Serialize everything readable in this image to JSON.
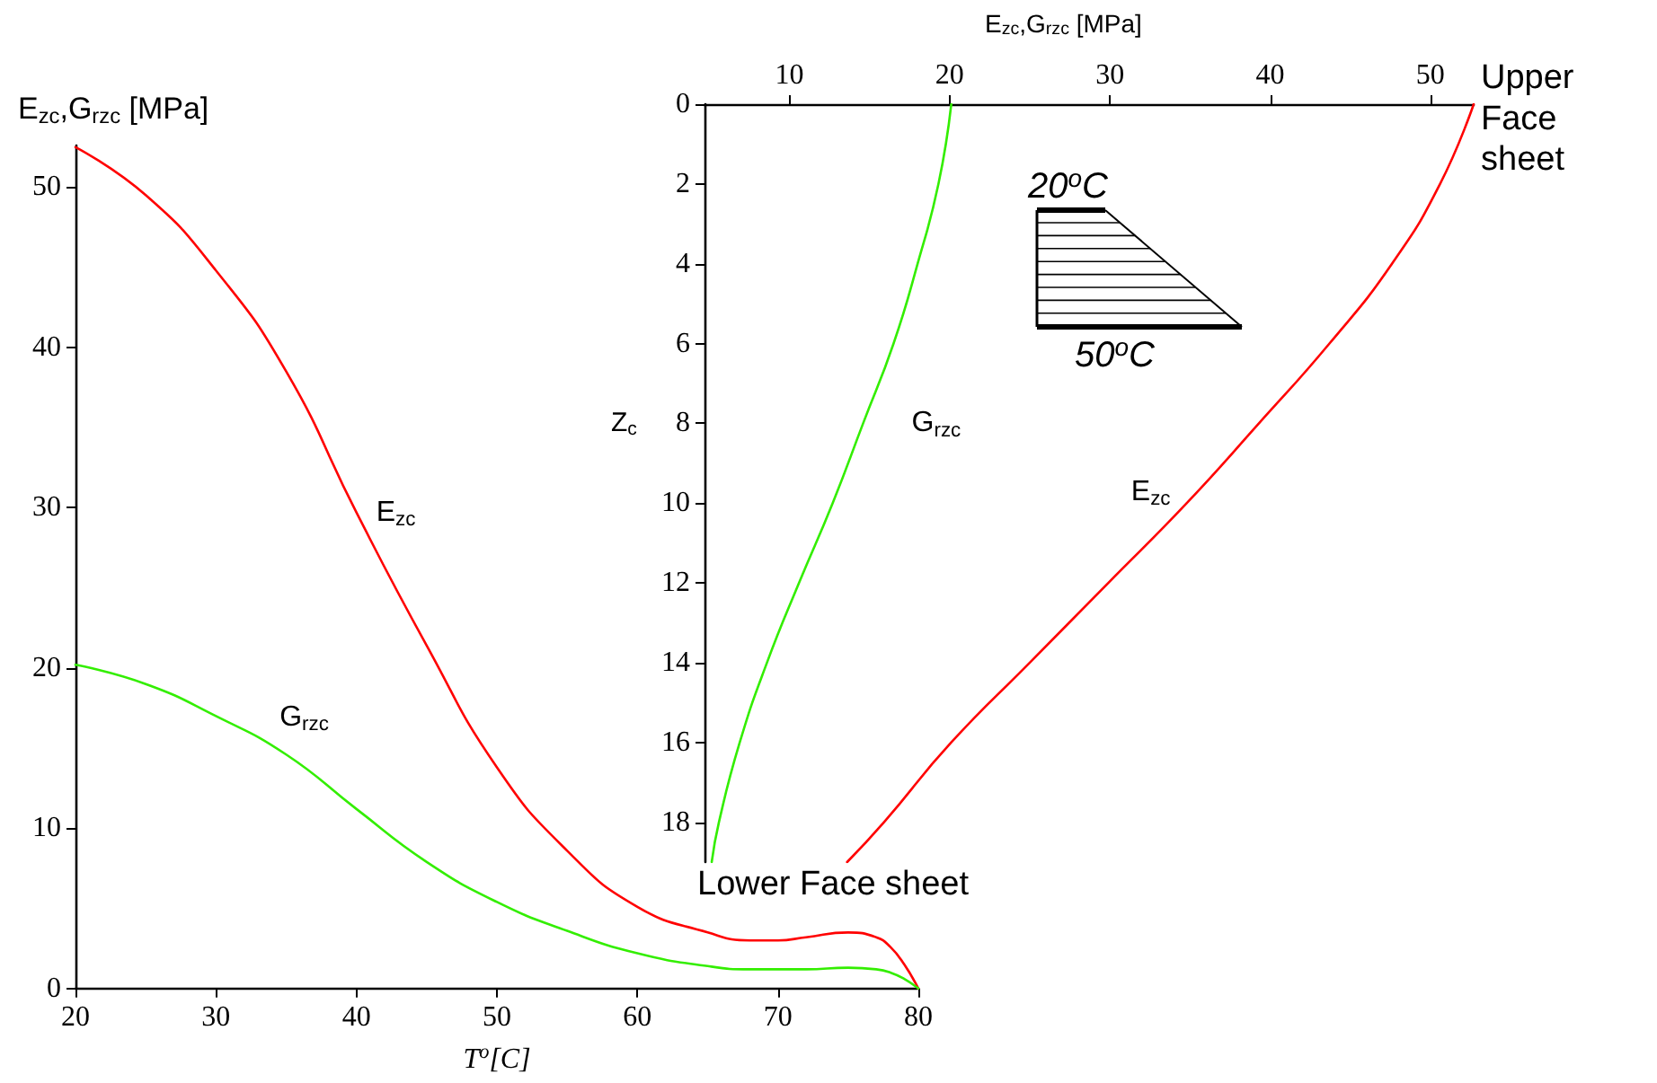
{
  "chart_data": [
    {
      "type": "line",
      "xlabel": "T$^{o}$[C]",
      "ylabel": "E$_{zc}$,G$_{rzc}$ [MPa]",
      "xlim": [
        20,
        80
      ],
      "xticks": [
        20,
        30,
        40,
        50,
        60,
        70,
        80
      ],
      "ylim": [
        0,
        52.6
      ],
      "yticks": [
        0,
        10,
        20,
        30,
        40,
        50
      ],
      "grid": false,
      "legend": false,
      "marker": "none",
      "line_style": "solid",
      "x": [
        20,
        25,
        30,
        35,
        40,
        45,
        50,
        55,
        60,
        65,
        68,
        70,
        72,
        75,
        77,
        78,
        79,
        80
      ],
      "series": [
        {
          "name": "E$_{zc}$",
          "color": "#ff0000",
          "values": [
            52.5,
            49.5,
            44.8,
            38.5,
            29.7,
            21.4,
            13.8,
            8.6,
            5.1,
            3.5,
            3.0,
            3.0,
            3.2,
            3.5,
            3.2,
            2.6,
            1.5,
            0
          ]
        },
        {
          "name": "G$_{rzc}$",
          "color": "#33ee00",
          "values": [
            20.2,
            19.0,
            17.0,
            14.6,
            11.2,
            7.9,
            5.4,
            3.6,
            2.2,
            1.4,
            1.2,
            1.2,
            1.2,
            1.3,
            1.2,
            1.0,
            0.6,
            0
          ]
        }
      ]
    },
    {
      "type": "line",
      "xlabel": "E$_{zc}$,G$_{rzc}$ [MPa]",
      "ylabel": "Z$_{c}$",
      "xlim": [
        4.7,
        52.7
      ],
      "xticks": [
        10,
        20,
        30,
        40,
        50
      ],
      "ylim": [
        19,
        0
      ],
      "yticks": [
        0,
        2,
        4,
        6,
        8,
        10,
        12,
        14,
        16,
        18
      ],
      "grid": false,
      "legend": false,
      "marker": "none",
      "line_style": "solid",
      "annotations": [
        "Upper Face sheet",
        "Lower Face sheet",
        "20$^{o}$C",
        "50$^{o}$C"
      ],
      "series": [
        {
          "name": "G$_{rzc}$",
          "color": "#33ee00",
          "x": [
            20.1,
            19.3,
            18.0,
            16.5,
            14.6,
            12.7,
            10.6,
            8.6,
            6.9,
            5.6,
            5.15
          ],
          "values": [
            0,
            2,
            4,
            6,
            8,
            10,
            12,
            14,
            16,
            18,
            19
          ]
        },
        {
          "name": "E$_{zc}$",
          "color": "#ff0000",
          "x": [
            52.7,
            50.6,
            47.6,
            43.7,
            39.3,
            34.8,
            29.9,
            25.0,
            20.1,
            15.9,
            13.6
          ],
          "values": [
            0,
            2,
            4,
            6,
            8,
            10,
            12,
            14,
            16,
            18,
            19
          ]
        }
      ]
    }
  ]
}
